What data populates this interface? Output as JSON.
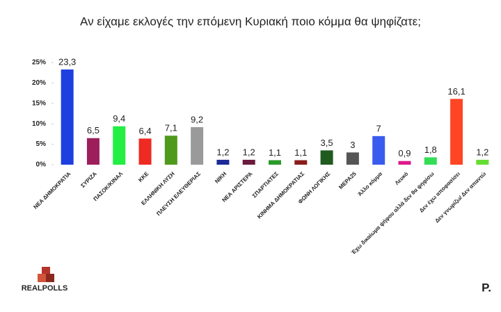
{
  "chart_data": {
    "type": "bar",
    "title": "Αν είχαμε εκλογές την επόμενη Κυριακή ποιο κόμμα θα ψηφίζατε;",
    "categories": [
      "ΝΕΑ ΔΗΜΟΚΡΑΤΙΑ",
      "ΣΥΡΙΖΑ",
      "ΠΑΣΟΚ/ΚΙΝΑΛ",
      "ΚΚΕ",
      "ΕΛΛΗΝΙΚΗ ΛΥΣΗ",
      "ΠΛΕΥΣΗ ΕΛΕΥΘΕΡΙΑΣ",
      "ΝΙΚΗ",
      "ΝΕΑ ΑΡΙΣΤΕΡΑ",
      "ΣΠΑΡΤΙΑΤΕΣ",
      "ΚΙΝΗΜΑ ΔΗΜΟΚΡΑΤΙΑΣ",
      "ΦΩΝΗ ΛΟΓΙΚΗΣ",
      "ΜΕΡΑ25",
      "Άλλο κόμμα",
      "Λευκό",
      "Έχω δικαίωμα ψήφου αλλά δεν θα ψηφίσω",
      "Δεν έχω αποφασίσει",
      "Δεν γνωρίζω/ Δεν απαντώ"
    ],
    "values": [
      23.3,
      6.5,
      9.4,
      6.4,
      7.1,
      9.2,
      1.2,
      1.2,
      1.1,
      1.1,
      3.5,
      3,
      7,
      0.9,
      1.8,
      16.1,
      1.2
    ],
    "value_labels": [
      "23,3",
      "6,5",
      "9,4",
      "6,4",
      "7,1",
      "9,2",
      "1,2",
      "1,2",
      "1,1",
      "1,1",
      "3,5",
      "3",
      "7",
      "0,9",
      "1,8",
      "16,1",
      "1,2"
    ],
    "colors": [
      "#1d3fe0",
      "#9c1f5c",
      "#22ee44",
      "#ee2a22",
      "#4f9a1c",
      "#9a9a9a",
      "#1c2a98",
      "#6a1a3c",
      "#2a9a2a",
      "#8a1c1c",
      "#1f5a1f",
      "#555555",
      "#3a5cee",
      "#dd1a8a",
      "#33dd55",
      "#ff4624",
      "#66dd33"
    ],
    "ylim": [
      0,
      25
    ],
    "yticks": [
      {
        "value": 0,
        "label": "0%"
      },
      {
        "value": 5,
        "label": "5%"
      },
      {
        "value": 10,
        "label": "10%"
      },
      {
        "value": 15,
        "label": "15%"
      },
      {
        "value": 20,
        "label": "20%"
      },
      {
        "value": 25,
        "label": "25%"
      }
    ]
  },
  "logo": "REALPOLLS",
  "brand": "P."
}
